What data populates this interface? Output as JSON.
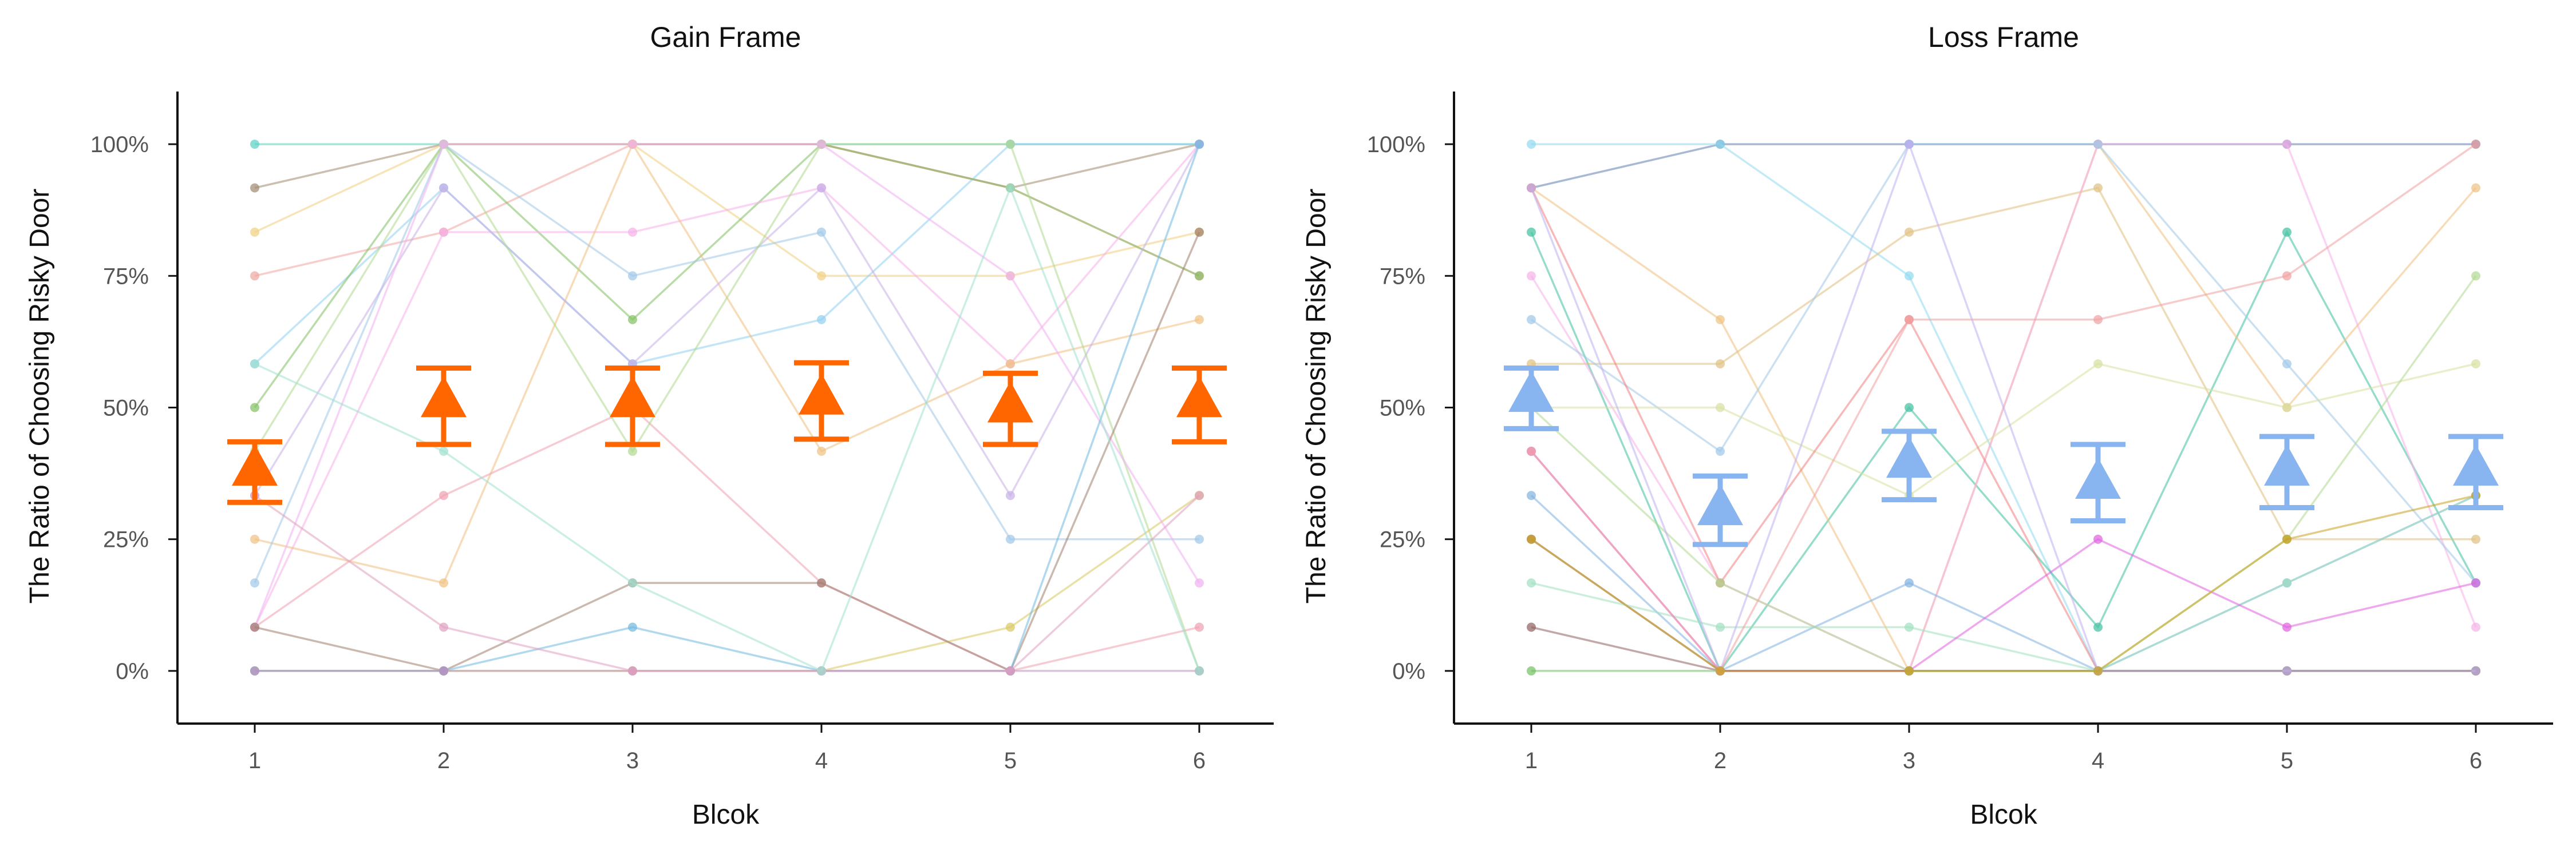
{
  "chart_data": [
    {
      "type": "line",
      "title": "Gain Frame",
      "xlabel": "Blcok",
      "ylabel": "The Ratio of Choosing Risky Door",
      "categories": [
        "1",
        "2",
        "3",
        "4",
        "5",
        "6"
      ],
      "yticks": [
        "0%",
        "25%",
        "50%",
        "75%",
        "100%"
      ],
      "ylim": [
        -10,
        110
      ],
      "grid": false,
      "summary_series": {
        "color": "#ff6600",
        "marker": "triangle",
        "mean": [
          38,
          51,
          51,
          51.5,
          50,
          51
        ],
        "error_low": [
          32,
          43,
          43,
          44,
          43,
          43.5
        ],
        "error_high": [
          43.5,
          57.5,
          57.5,
          58.5,
          56.5,
          57.5
        ]
      },
      "participants": [
        {
          "color": "#5ad0c0",
          "values": [
            100,
            100,
            100,
            100,
            100,
            100
          ]
        },
        {
          "color": "#a08a70",
          "values": [
            91.7,
            100,
            100,
            100,
            91.7,
            100
          ]
        },
        {
          "color": "#f0a5a0",
          "values": [
            75,
            83.3,
            100,
            100,
            91.7,
            75
          ]
        },
        {
          "color": "#f0d080",
          "values": [
            83.3,
            100,
            100,
            75,
            75,
            83.3
          ]
        },
        {
          "color": "#90d0f0",
          "values": [
            58.3,
            91.7,
            58.3,
            66.7,
            100,
            100
          ]
        },
        {
          "color": "#80c060",
          "values": [
            50,
            100,
            66.7,
            100,
            91.7,
            75
          ]
        },
        {
          "color": "#f5b0e8",
          "values": [
            8.3,
            83.3,
            83.3,
            91.7,
            58.3,
            100
          ]
        },
        {
          "color": "#f0c080",
          "values": [
            25,
            16.7,
            100,
            41.7,
            58.3,
            66.7
          ]
        },
        {
          "color": "#a0c8e8",
          "values": [
            16.7,
            100,
            75,
            83.3,
            25,
            25
          ]
        },
        {
          "color": "#c8b0e8",
          "values": [
            33.3,
            91.7,
            58.3,
            91.7,
            33.3,
            100
          ]
        },
        {
          "color": "#f0a0b0",
          "values": [
            8.3,
            33.3,
            50,
            16.7,
            0,
            8.3
          ]
        },
        {
          "color": "#b0d890",
          "values": [
            41.7,
            100,
            41.7,
            100,
            100,
            0
          ]
        },
        {
          "color": "#d8c860",
          "values": [
            0,
            0,
            0,
            0,
            8.3,
            33.3
          ]
        },
        {
          "color": "#f0b0f0",
          "values": [
            8.3,
            100,
            100,
            100,
            75,
            16.7
          ]
        },
        {
          "color": "#a08070",
          "values": [
            8.3,
            0,
            16.7,
            16.7,
            0,
            83.3
          ]
        },
        {
          "color": "#70b8e0",
          "values": [
            0,
            0,
            8.3,
            0,
            0,
            100
          ]
        },
        {
          "color": "#c090c0",
          "values": [
            0,
            0,
            0,
            0,
            0,
            0
          ]
        },
        {
          "color": "#e0a0c0",
          "values": [
            33.3,
            8.3,
            0,
            0,
            0,
            33.3
          ]
        },
        {
          "color": "#a0e0d0",
          "values": [
            58.3,
            41.7,
            16.7,
            0,
            91.7,
            0
          ]
        }
      ]
    },
    {
      "type": "line",
      "title": "Loss Frame",
      "xlabel": "Blcok",
      "ylabel": "The Ratio of Choosing Risky Door",
      "categories": [
        "1",
        "2",
        "3",
        "4",
        "5",
        "6"
      ],
      "yticks": [
        "0%",
        "25%",
        "50%",
        "75%",
        "100%"
      ],
      "ylim": [
        -10,
        110
      ],
      "grid": false,
      "summary_series": {
        "color": "#88b4f0",
        "marker": "triangle",
        "mean": [
          52,
          30.5,
          39.5,
          35.5,
          38,
          38
        ],
        "error_low": [
          46,
          24,
          32.5,
          28.5,
          31,
          31
        ],
        "error_high": [
          57.5,
          37,
          45.5,
          43,
          44.5,
          44.5
        ]
      },
      "participants": [
        {
          "color": "#6080b0",
          "values": [
            91.7,
            100,
            100,
            100,
            100,
            100
          ]
        },
        {
          "color": "#90d8f0",
          "values": [
            100,
            100,
            75,
            0,
            0,
            0
          ]
        },
        {
          "color": "#40c0a0",
          "values": [
            83.3,
            0,
            50,
            8.3,
            83.3,
            16.7
          ]
        },
        {
          "color": "#f0c080",
          "values": [
            91.7,
            66.7,
            0,
            100,
            50,
            91.7
          ]
        },
        {
          "color": "#e0c080",
          "values": [
            58.3,
            58.3,
            83.3,
            91.7,
            25,
            25
          ]
        },
        {
          "color": "#f5b0e8",
          "values": [
            75,
            16.7,
            0,
            100,
            100,
            8.3
          ]
        },
        {
          "color": "#a0c8e8",
          "values": [
            66.7,
            41.7,
            100,
            100,
            58.3,
            16.7
          ]
        },
        {
          "color": "#d8e0a0",
          "values": [
            50,
            50,
            33.3,
            58.3,
            50,
            58.3
          ]
        },
        {
          "color": "#f08080",
          "values": [
            91.7,
            16.7,
            66.7,
            0,
            0,
            0
          ]
        },
        {
          "color": "#80b0e0",
          "values": [
            33.3,
            0,
            16.7,
            0,
            16.7,
            33.3
          ]
        },
        {
          "color": "#906060",
          "values": [
            8.3,
            0,
            0,
            0,
            0,
            0
          ]
        },
        {
          "color": "#70c060",
          "values": [
            0,
            0,
            0,
            0,
            0,
            0
          ]
        },
        {
          "color": "#a07060",
          "values": [
            25,
            0,
            0,
            0,
            0,
            0
          ]
        },
        {
          "color": "#a0e0c0",
          "values": [
            16.7,
            8.3,
            8.3,
            0,
            16.7,
            33.3
          ]
        },
        {
          "color": "#e060e0",
          "values": [
            41.7,
            0,
            0,
            25,
            8.3,
            16.7
          ]
        },
        {
          "color": "#b0d890",
          "values": [
            50,
            16.7,
            0,
            0,
            25,
            75
          ]
        },
        {
          "color": "#c0b0f0",
          "values": [
            91.7,
            0,
            100,
            0,
            0,
            0
          ]
        },
        {
          "color": "#f0a0a0",
          "values": [
            41.7,
            0,
            66.7,
            66.7,
            75,
            100
          ]
        },
        {
          "color": "#c8a020",
          "values": [
            25,
            0,
            0,
            0,
            25,
            33.3
          ]
        }
      ]
    }
  ]
}
